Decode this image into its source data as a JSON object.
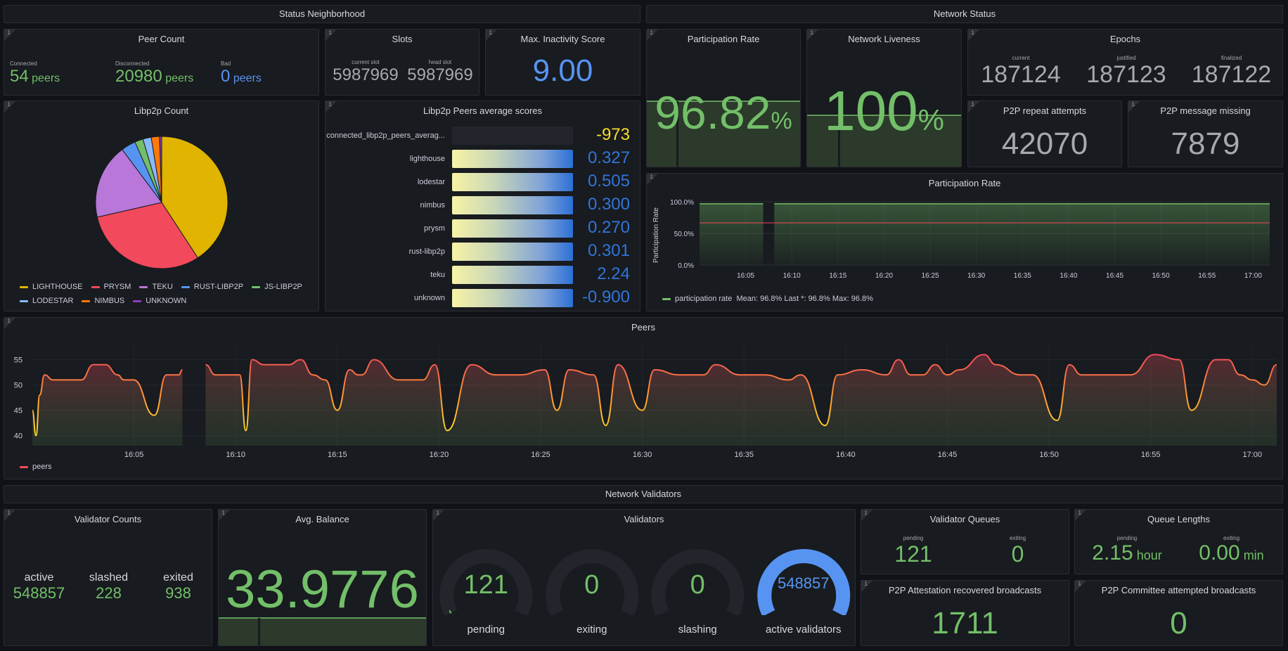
{
  "rows": {
    "status_neighborhood": "Status Neighborhood",
    "network_status": "Network Status",
    "network_validators": "Network Validators"
  },
  "peer_count": {
    "title": "Peer Count",
    "connected_label": "Connected",
    "connected_value": "54",
    "connected_unit": "peers",
    "disconnected_label": "Disconnected",
    "disconnected_value": "20980",
    "disconnected_unit": "peers",
    "bad_label": "Bad",
    "bad_value": "0",
    "bad_unit": "peers"
  },
  "slots": {
    "title": "Slots",
    "current_label": "current slot",
    "current_value": "5987969",
    "head_label": "head slot",
    "head_value": "5987969"
  },
  "inactivity": {
    "title": "Max. Inactivity Score",
    "value": "9.00"
  },
  "participation_stat": {
    "title": "Participation Rate",
    "value": "96.82",
    "unit": "%"
  },
  "liveness": {
    "title": "Network Liveness",
    "value": "100",
    "unit": "%"
  },
  "epochs": {
    "title": "Epochs",
    "current_label": "current",
    "current_value": "187124",
    "justified_label": "justified",
    "justified_value": "187123",
    "finalized_label": "finalized",
    "finalized_value": "187122"
  },
  "p2p_repeat": {
    "title": "P2P repeat attempts",
    "value": "42070"
  },
  "p2p_missing": {
    "title": "P2P message missing",
    "value": "7879"
  },
  "libp2p_count": {
    "title": "Libp2p Count",
    "legend": [
      {
        "name": "LIGHTHOUSE",
        "color": "#e0b400"
      },
      {
        "name": "PRYSM",
        "color": "#f2495c"
      },
      {
        "name": "TEKU",
        "color": "#b877d9"
      },
      {
        "name": "RUST-LIBP2P",
        "color": "#5794f2"
      },
      {
        "name": "JS-LIBP2P",
        "color": "#73bf69"
      },
      {
        "name": "LODESTAR",
        "color": "#8ab8ff"
      },
      {
        "name": "NIMBUS",
        "color": "#ff780a"
      },
      {
        "name": "UNKNOWN",
        "color": "#8f3bb8"
      }
    ]
  },
  "libp2p_scores": {
    "title": "Libp2p Peers average scores",
    "rows": [
      {
        "label": "connected_libp2p_peers_averag...",
        "value": "-973",
        "fill": 0
      },
      {
        "label": "lighthouse",
        "value": "0.327",
        "fill": 1
      },
      {
        "label": "lodestar",
        "value": "0.505",
        "fill": 1
      },
      {
        "label": "nimbus",
        "value": "0.300",
        "fill": 1
      },
      {
        "label": "prysm",
        "value": "0.270",
        "fill": 1
      },
      {
        "label": "rust-libp2p",
        "value": "0.301",
        "fill": 1
      },
      {
        "label": "teku",
        "value": "2.24",
        "fill": 1
      },
      {
        "label": "unknown",
        "value": "-0.900",
        "fill": 1
      }
    ]
  },
  "participation_chart": {
    "title": "Participation Rate",
    "ylabel": "Participation Rate",
    "legend_name": "participation rate",
    "legend_stats": "Mean: 96.8%   Last *: 96.8%   Max: 96.8%"
  },
  "peers_chart": {
    "title": "Peers",
    "legend_name": "peers"
  },
  "validator_counts": {
    "title": "Validator Counts",
    "active_label": "active",
    "active_value": "548857",
    "slashed_label": "slashed",
    "slashed_value": "228",
    "exited_label": "exited",
    "exited_value": "938"
  },
  "avg_balance": {
    "title": "Avg. Balance",
    "value": "33.9776"
  },
  "validators": {
    "title": "Validators",
    "gauges": [
      {
        "label": "pending",
        "value": "121",
        "fraction": 0.02
      },
      {
        "label": "exiting",
        "value": "0",
        "fraction": 0
      },
      {
        "label": "slashing",
        "value": "0",
        "fraction": 0
      },
      {
        "label": "active validators",
        "value": "548857",
        "fraction": 1
      }
    ]
  },
  "validator_queues": {
    "title": "Validator Queues",
    "pending_label": "pending",
    "pending_value": "121",
    "exiting_label": "exiting",
    "exiting_value": "0"
  },
  "queue_lengths": {
    "title": "Queue Lengths",
    "pending_label": "pending",
    "pending_value": "2.15",
    "pending_unit": "hour",
    "exiting_label": "exiting",
    "exiting_value": "0.00",
    "exiting_unit": "min"
  },
  "attestation_recovered": {
    "title": "P2P Attestation recovered broadcasts",
    "value": "1711"
  },
  "committee_attempted": {
    "title": "P2P Committee attempted broadcasts",
    "value": "0"
  },
  "chart_data": [
    {
      "type": "pie",
      "title": "Libp2p Count",
      "categories": [
        "LIGHTHOUSE",
        "PRYSM",
        "TEKU",
        "RUST-LIBP2P",
        "JS-LIBP2P",
        "LODESTAR",
        "NIMBUS",
        "UNKNOWN"
      ],
      "values": [
        40,
        30,
        18,
        3.5,
        2,
        2,
        2,
        0.5
      ]
    },
    {
      "type": "area",
      "title": "Participation Rate",
      "ylabel": "Participation Rate",
      "x_ticks": [
        "16:05",
        "16:10",
        "16:15",
        "16:20",
        "16:25",
        "16:30",
        "16:35",
        "16:40",
        "16:45",
        "16:50",
        "16:55",
        "17:00"
      ],
      "y_ticks": [
        "0.0%",
        "50.0%",
        "100.0%"
      ],
      "ylim": [
        0,
        100
      ],
      "xlim": [
        16.0,
        17.03
      ],
      "series": [
        {
          "name": "participation rate",
          "x": [
            16.0,
            16.12,
            16.13,
            17.03
          ],
          "y": [
            96.8,
            96.8,
            96.8,
            96.8
          ],
          "gap": [
            16.115,
            16.135
          ]
        }
      ],
      "threshold": 66.7
    },
    {
      "type": "line",
      "title": "Peers",
      "x_ticks": [
        "16:05",
        "16:10",
        "16:15",
        "16:20",
        "16:25",
        "16:30",
        "16:35",
        "16:40",
        "16:45",
        "16:50",
        "16:55",
        "17:00"
      ],
      "y_ticks": [
        "40",
        "45",
        "50",
        "55"
      ],
      "ylim": [
        38,
        58
      ],
      "xlim": [
        16.0,
        17.02
      ],
      "gap": [
        16.125,
        16.142
      ],
      "series": [
        {
          "name": "peers",
          "x": [
            16.0,
            16.003,
            16.006,
            16.01,
            16.017,
            16.04,
            16.05,
            16.06,
            16.07,
            16.075,
            16.083,
            16.1,
            16.11,
            16.116,
            16.12,
            16.123,
            16.142,
            16.15,
            16.17,
            16.175,
            16.18,
            16.19,
            16.21,
            16.22,
            16.23,
            16.24,
            16.25,
            16.26,
            16.267,
            16.27,
            16.28,
            16.3,
            16.32,
            16.33,
            16.34,
            16.36,
            16.38,
            16.4,
            16.42,
            16.43,
            16.44,
            16.46,
            16.47,
            16.48,
            16.5,
            16.51,
            16.53,
            16.55,
            16.56,
            16.58,
            16.6,
            16.62,
            16.63,
            16.65,
            16.66,
            16.68,
            16.7,
            16.71,
            16.72,
            16.73,
            16.74,
            16.75,
            16.76,
            16.78,
            16.79,
            16.81,
            16.82,
            16.84,
            16.85,
            16.86,
            16.88,
            16.9,
            16.92,
            16.94,
            16.95,
            16.97,
            16.98,
            16.99,
            17.0,
            17.01,
            17.02
          ],
          "y": [
            45,
            40,
            48,
            52,
            51,
            51,
            54,
            54,
            52,
            51,
            51,
            44,
            52,
            52,
            52,
            53,
            54,
            52,
            52,
            41,
            55,
            54,
            54,
            55,
            52,
            51,
            45,
            53,
            52,
            52,
            55,
            51,
            51,
            54,
            41,
            54,
            52,
            52,
            53,
            45,
            53,
            52,
            42,
            54,
            45,
            53,
            52,
            52,
            54,
            52,
            52,
            51,
            52,
            42,
            52,
            53,
            52,
            55,
            52,
            52,
            54,
            52,
            53,
            56,
            54,
            52,
            52,
            43,
            54,
            52,
            52,
            52,
            56,
            55,
            45,
            55,
            55,
            52,
            51,
            50,
            54
          ]
        }
      ]
    }
  ]
}
